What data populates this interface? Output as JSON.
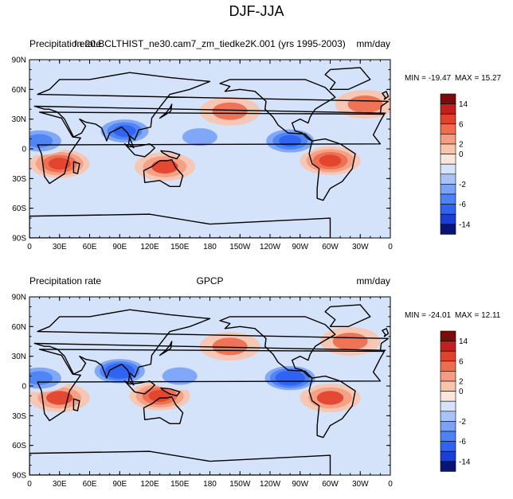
{
  "title": "DJF-JJA",
  "colors": {
    "levels": [
      -14,
      -10,
      -6,
      -4,
      -2,
      -1,
      0,
      1,
      2,
      4,
      6,
      10,
      14
    ],
    "palette": [
      "#0a1472",
      "#1a3fd6",
      "#2f63f0",
      "#4c82f5",
      "#7aa3f7",
      "#a8c3f7",
      "#d5e3fa",
      "#fbe6dc",
      "#f7c4ae",
      "#f49d82",
      "#ee6d4f",
      "#e2412c",
      "#c31f1f",
      "#7a0c0c"
    ]
  },
  "panels": [
    {
      "id": "model",
      "left_label": "Precipitation rate",
      "center_label": "f.e20.BCLTHIST_ne30.cam7_zm_tiedke2K.001 (yrs 1995-2003)",
      "right_label": "mm/day",
      "min_label": "MIN = -19.47",
      "max_label": "MAX =  15.27",
      "colorbar_labels": [
        "14",
        "6",
        "2",
        "0",
        "-2",
        "-6",
        "-14"
      ]
    },
    {
      "id": "obs",
      "left_label": "Precipitation rate",
      "center_label": "GPCP",
      "right_label": "mm/day",
      "min_label": "MIN = -24.01",
      "max_label": "MAX =  12.11",
      "colorbar_labels": [
        "14",
        "6",
        "2",
        "0",
        "-2",
        "-6",
        "-14"
      ]
    }
  ],
  "chart_data": [
    {
      "type": "heatmap",
      "subtype": "contour-map",
      "title": "DJF-JJA",
      "variable": "Precipitation rate",
      "units": "mm/day",
      "dataset": "f.e20.BCLTHIST_ne30.cam7_zm_tiedke2K.001 (yrs 1995-2003)",
      "x_ticks": [
        "0",
        "30E",
        "60E",
        "90E",
        "120E",
        "150E",
        "180",
        "150W",
        "120W",
        "90W",
        "60W",
        "30W",
        "0"
      ],
      "y_ticks": [
        "90N",
        "60N",
        "30N",
        "0",
        "30S",
        "60S",
        "90S"
      ],
      "xlim": [
        0,
        360
      ],
      "ylim": [
        -90,
        90
      ],
      "min": -19.47,
      "max": 15.27,
      "contour_levels": [
        -14,
        -10,
        -6,
        -4,
        -2,
        -1,
        0,
        1,
        2,
        4,
        6,
        10,
        14
      ],
      "features": [
        {
          "lon": 30,
          "lat": -15,
          "value": 8
        },
        {
          "lon": 135,
          "lat": -18,
          "value": 6
        },
        {
          "lon": 300,
          "lat": -12,
          "value": 8
        },
        {
          "lon": 200,
          "lat": 38,
          "value": 4
        },
        {
          "lon": 335,
          "lat": 45,
          "value": 4
        },
        {
          "lon": 95,
          "lat": 18,
          "value": -8
        },
        {
          "lon": 10,
          "lat": 8,
          "value": -6
        },
        {
          "lon": 260,
          "lat": 8,
          "value": -8
        },
        {
          "lon": 170,
          "lat": 12,
          "value": -4
        }
      ]
    },
    {
      "type": "heatmap",
      "subtype": "contour-map",
      "title": "DJF-JJA",
      "variable": "Precipitation rate",
      "units": "mm/day",
      "dataset": "GPCP",
      "x_ticks": [
        "0",
        "30E",
        "60E",
        "90E",
        "120E",
        "150E",
        "180",
        "150W",
        "120W",
        "90W",
        "60W",
        "30W",
        "0"
      ],
      "y_ticks": [
        "90N",
        "60N",
        "30N",
        "0",
        "30S",
        "60S",
        "90S"
      ],
      "xlim": [
        0,
        360
      ],
      "ylim": [
        -90,
        90
      ],
      "min": -24.01,
      "max": 12.11,
      "contour_levels": [
        -14,
        -10,
        -6,
        -4,
        -2,
        -1,
        0,
        1,
        2,
        4,
        6,
        10,
        14
      ],
      "features": [
        {
          "lon": 30,
          "lat": -12,
          "value": 6
        },
        {
          "lon": 130,
          "lat": -10,
          "value": 8
        },
        {
          "lon": 300,
          "lat": -12,
          "value": 6
        },
        {
          "lon": 200,
          "lat": 40,
          "value": 4
        },
        {
          "lon": 320,
          "lat": 45,
          "value": 4
        },
        {
          "lon": 90,
          "lat": 15,
          "value": -10
        },
        {
          "lon": 10,
          "lat": 8,
          "value": -6
        },
        {
          "lon": 260,
          "lat": 8,
          "value": -10
        },
        {
          "lon": 150,
          "lat": 10,
          "value": -4
        }
      ]
    }
  ]
}
